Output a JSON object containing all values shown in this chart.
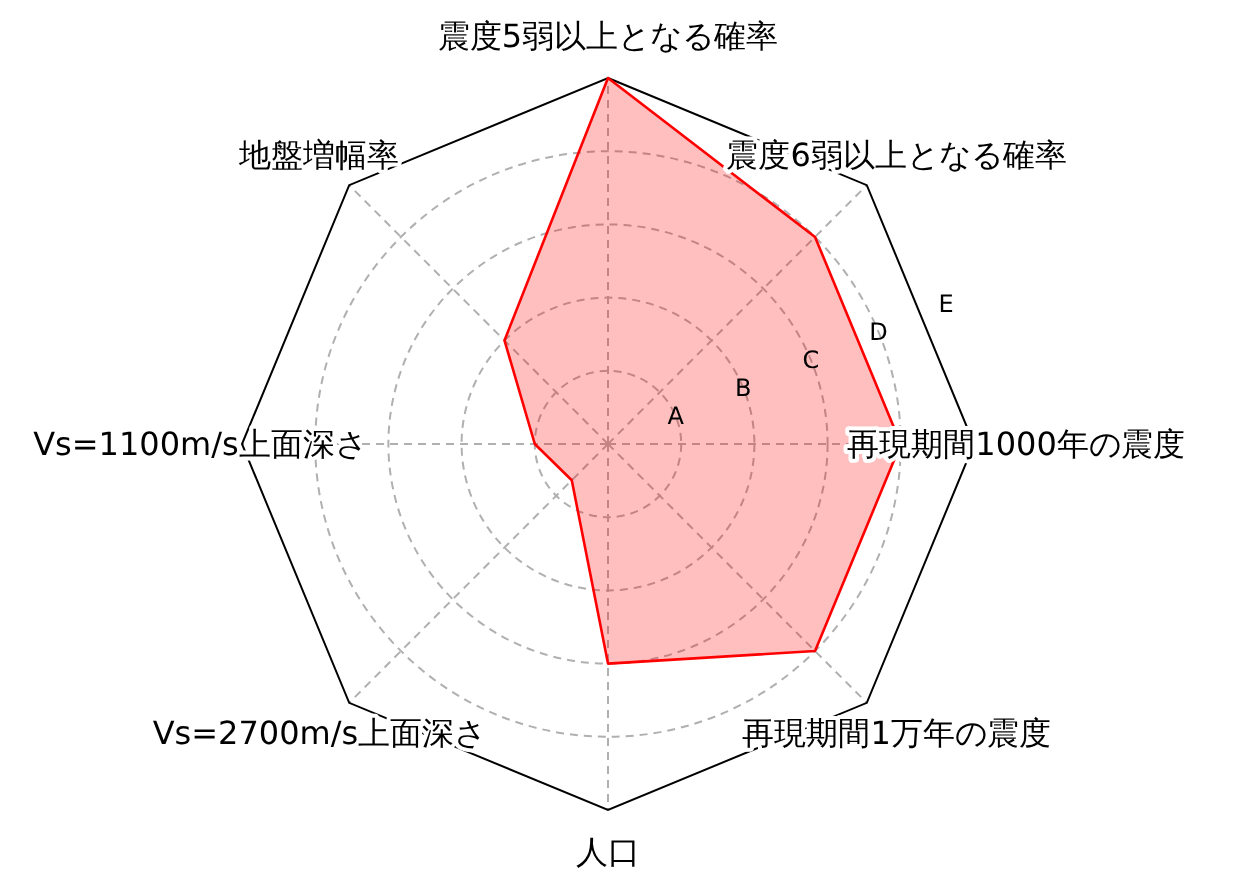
{
  "chart_data": {
    "type": "radar",
    "categories": [
      "震度5弱以上となる確率",
      "震度6弱以上となる確率",
      "再現期間1000年の震度",
      "再現期間1万年の震度",
      "人口",
      "Vs=2700m/s上面深さ",
      "Vs=1100m/s上面深さ",
      "地盤増幅率"
    ],
    "series": [
      {
        "color": "#ff0000",
        "values": [
          5,
          4,
          4,
          4,
          3,
          0.7,
          1,
          2
        ]
      }
    ],
    "ylim": [
      0,
      5
    ],
    "yticks": [
      {
        "value": 1,
        "label": "A"
      },
      {
        "value": 2,
        "label": "B"
      },
      {
        "value": 3,
        "label": "C"
      },
      {
        "value": 4,
        "label": "D"
      },
      {
        "value": 5,
        "label": "E"
      }
    ],
    "grid": true
  }
}
